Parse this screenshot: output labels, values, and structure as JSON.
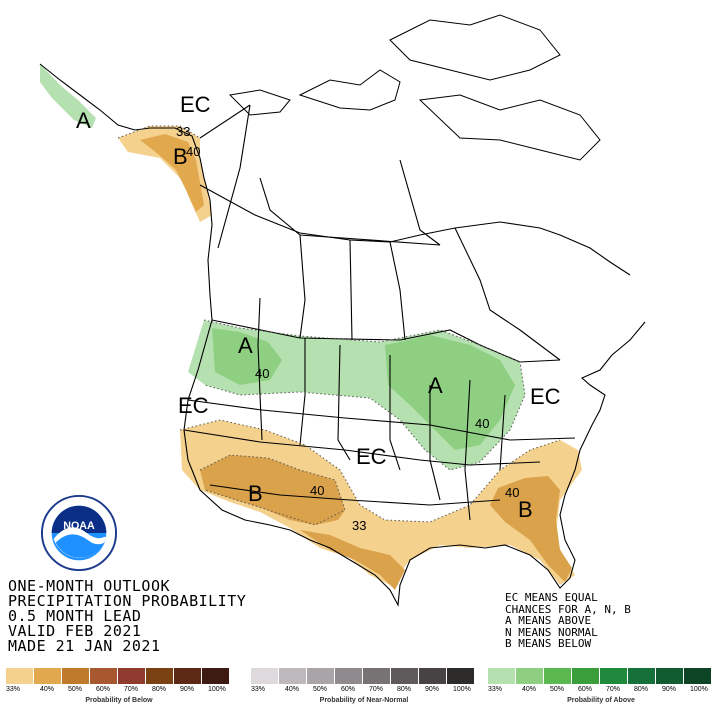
{
  "title_lines": [
    "ONE-MONTH OUTLOOK",
    "PRECIPITATION PROBABILITY",
    "0.5 MONTH LEAD",
    "VALID FEB 2021",
    "MADE 21 JAN 2021"
  ],
  "legend_lines": [
    "EC MEANS EQUAL",
    "CHANCES FOR A, N, B",
    "A MEANS ABOVE",
    "N MEANS NORMAL",
    "B MEANS BELOW"
  ],
  "logo_text": "NOAA",
  "map_labels": {
    "ec_alaska": "EC",
    "a_alaska": "A",
    "b_alaska": "B",
    "c33_alaska": "33",
    "c40_alaska": "40",
    "a_northwest": "A",
    "c40_northwest": "40",
    "ec_west": "EC",
    "a_midwest": "A",
    "c40_midwest": "40",
    "ec_east": "EC",
    "ec_central": "EC",
    "b_southwest": "B",
    "c40_southwest": "40",
    "c33_south": "33",
    "b_southeast": "B",
    "c40_southeast": "40"
  },
  "scales": [
    {
      "name": "Probability of Below",
      "colors": [
        "#f5d18e",
        "#e2a84e",
        "#c07a2c",
        "#a8582e",
        "#903b2f",
        "#7a4212",
        "#5c2a14",
        "#3d1a12"
      ],
      "ticks": [
        "33%",
        "40%",
        "50%",
        "60%",
        "70%",
        "80%",
        "90%",
        "100%"
      ]
    },
    {
      "name": "Probability of Near-Normal",
      "colors": [
        "#ddd9dc",
        "#bdb8bc",
        "#a9a4a8",
        "#8f8a8d",
        "#777274",
        "#5f5b5c",
        "#474344",
        "#2e2b2b"
      ],
      "ticks": [
        "33%",
        "40%",
        "50%",
        "60%",
        "70%",
        "80%",
        "90%",
        "100%"
      ]
    },
    {
      "name": "Probability of Above",
      "colors": [
        "#b5e0b0",
        "#8ecf82",
        "#5bb84e",
        "#3a9e3a",
        "#1f8a3d",
        "#16703a",
        "#125c32",
        "#0d4426"
      ],
      "ticks": [
        "33%",
        "40%",
        "50%",
        "60%",
        "70%",
        "80%",
        "90%",
        "100%"
      ]
    }
  ]
}
